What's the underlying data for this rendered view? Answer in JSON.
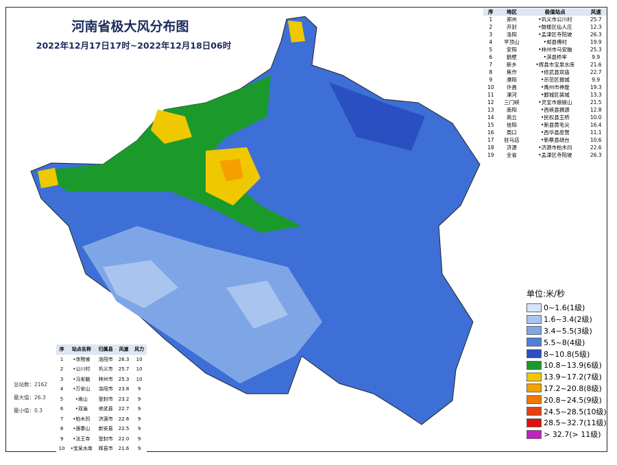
{
  "header": {
    "title": "河南省极大风分布图",
    "subtitle": "2022年12月17日17时~2022年12月18日06时"
  },
  "top_table": {
    "headers": [
      "序",
      "地区",
      "极值站点",
      "风速"
    ],
    "rows": [
      [
        "1",
        "郑州",
        "•巩义市公川村",
        "25.7"
      ],
      [
        "2",
        "开封",
        "•鼓楼区仙人庄",
        "12.3"
      ],
      [
        "3",
        "洛阳",
        "•孟津区寺院坡",
        "26.3"
      ],
      [
        "4",
        "平顶山",
        "•郏县傅村",
        "19.9"
      ],
      [
        "5",
        "安阳",
        "•林州市马安脑",
        "25.3"
      ],
      [
        "6",
        "鹤壁",
        "•淇县桥率",
        "9.9"
      ],
      [
        "7",
        "新乡",
        "•辉县市宝泉水库",
        "21.6"
      ],
      [
        "8",
        "焦作",
        "•修武县双庙",
        "22.7"
      ],
      [
        "9",
        "濮阳",
        "•示范区振城",
        "9.9"
      ],
      [
        "10",
        "许昌",
        "•禹州市神垕",
        "19.3"
      ],
      [
        "11",
        "漯河",
        "•郾城区裴城",
        "13.3"
      ],
      [
        "12",
        "三门峡",
        "•灵宝市娘娘山",
        "21.5"
      ],
      [
        "13",
        "南阳",
        "•西峡县狮源",
        "12.8"
      ],
      [
        "14",
        "商丘",
        "•民权县王桥",
        "10.0"
      ],
      [
        "15",
        "信阳",
        "•新县黄毛尖",
        "16.4"
      ],
      [
        "16",
        "周口",
        "•西华县皮营",
        "11.1"
      ],
      [
        "17",
        "驻马店",
        "•新蔡县胡台",
        "10.6"
      ],
      [
        "18",
        "济源",
        "•济源市柏木凹",
        "22.6"
      ],
      [
        "19",
        "全省",
        "•孟津区寺院坡",
        "26.3"
      ]
    ]
  },
  "bottom_table": {
    "headers": [
      "序",
      "站点名称",
      "归属县",
      "风速",
      "风力"
    ],
    "rows": [
      [
        "1",
        "•寺院坡",
        "洛阳市",
        "26.3",
        "10"
      ],
      [
        "2",
        "•公川村",
        "巩义市",
        "25.7",
        "10"
      ],
      [
        "3",
        "•马安脑",
        "林州市",
        "25.3",
        "10"
      ],
      [
        "4",
        "•万安山",
        "洛阳市",
        "23.8",
        "9"
      ],
      [
        "5",
        "•嵩山",
        "登封市",
        "23.2",
        "9"
      ],
      [
        "6",
        "•双庙",
        "修武县",
        "22.7",
        "9"
      ],
      [
        "7",
        "•柏木凹",
        "济源市",
        "22.6",
        "9"
      ],
      [
        "8",
        "•莲寨山",
        "新安县",
        "22.5",
        "9"
      ],
      [
        "9",
        "•法王寺",
        "登封市",
        "22.0",
        "9"
      ],
      [
        "10",
        "•宝泉水库",
        "辉县市",
        "21.6",
        "9"
      ]
    ]
  },
  "stats": [
    "总站数：2162",
    "最大值：26.3",
    "最小值：0.3"
  ],
  "legend": {
    "unit": "单位:米/秒",
    "items": [
      {
        "label": "0~1.6(1级)",
        "color": "#d6e4f7"
      },
      {
        "label": "1.6~3.4(2级)",
        "color": "#a9c4ee"
      },
      {
        "label": "3.4~5.5(3级)",
        "color": "#7ea6e6"
      },
      {
        "label": "5.5~8(4级)",
        "color": "#4f7fdc"
      },
      {
        "label": "8~10.8(5级)",
        "color": "#2a4fc0"
      },
      {
        "label": "10.8~13.9(6级)",
        "color": "#1a9a2a"
      },
      {
        "label": "13.9~17.2(7级)",
        "color": "#f0c800"
      },
      {
        "label": "17.2~20.8(8级)",
        "color": "#f5a000"
      },
      {
        "label": "20.8~24.5(9级)",
        "color": "#f07800"
      },
      {
        "label": "24.5~28.5(10级)",
        "color": "#e84010"
      },
      {
        "label": "28.5~32.7(11级)",
        "color": "#e01010"
      },
      {
        "label": "> 32.7(> 11级)",
        "color": "#c020c0"
      }
    ]
  }
}
